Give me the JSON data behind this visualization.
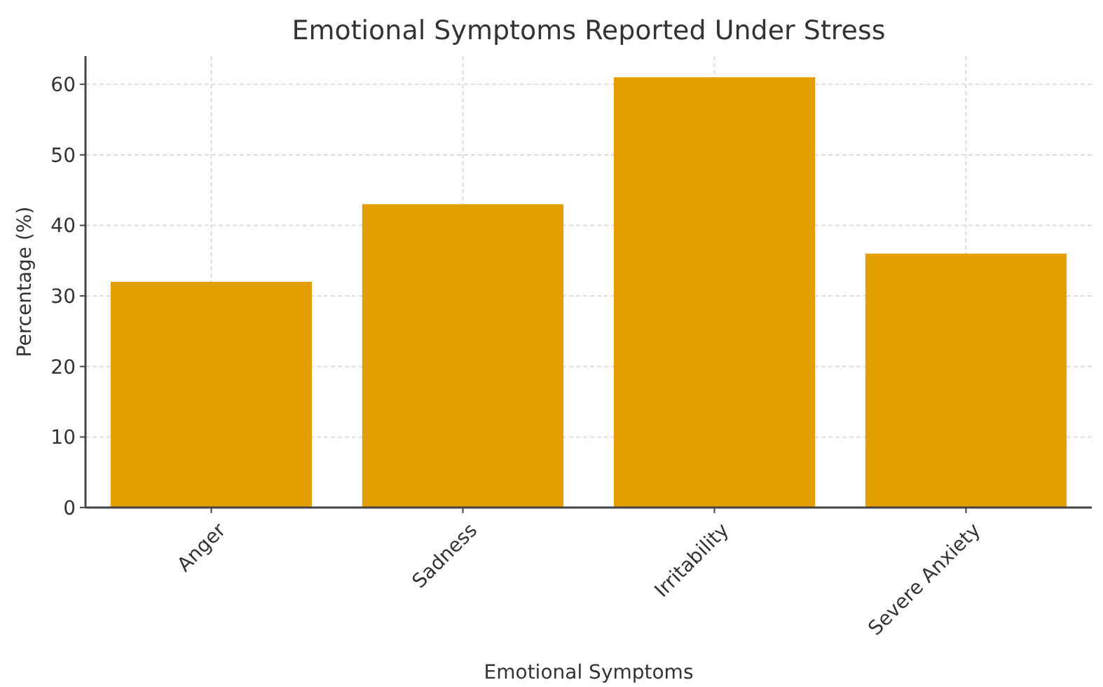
{
  "chart_data": {
    "type": "bar",
    "title": "Emotional Symptoms Reported Under Stress",
    "xlabel": "Emotional Symptoms",
    "ylabel": "Percentage (%)",
    "categories": [
      "Anger",
      "Sadness",
      "Irritability",
      "Severe Anxiety"
    ],
    "values": [
      32,
      43,
      61,
      36
    ],
    "color": "#e39f00",
    "ylim": [
      0,
      64
    ],
    "yticks": [
      0,
      10,
      20,
      30,
      40,
      50,
      60
    ],
    "grid": true
  }
}
